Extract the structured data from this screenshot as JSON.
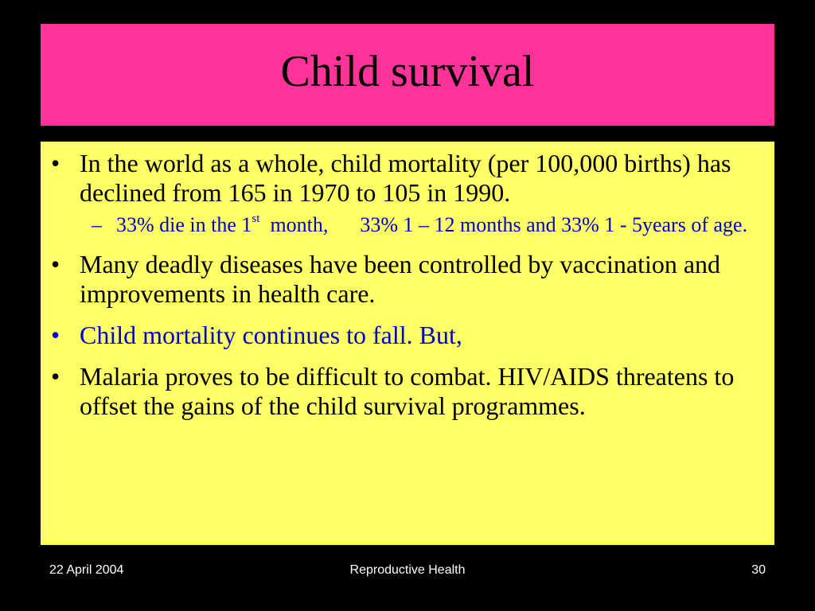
{
  "slide": {
    "title": "Child survival",
    "colors": {
      "background": "#000000",
      "title_box": "#ff3399",
      "body_box": "#ffff66",
      "accent_text": "#0000cc"
    },
    "bullets": [
      {
        "marker": "•",
        "text": "In the world as a whole, child mortality (per 100,000 births) has declined from 165 in 1970 to 105 in 1990.",
        "sub_bullets": [
          {
            "marker": "–",
            "part1": "33% die in the 1",
            "superscript": "st",
            "part2": "  month,",
            "part3": "33%  1 – 12 months and 33%  1 - 5years of age."
          }
        ]
      },
      {
        "marker": "•",
        "text": "Many deadly diseases have been controlled by vaccination and improvements in health care."
      },
      {
        "marker": "•",
        "text": "Child mortality continues to fall.  But,"
      },
      {
        "marker": "•",
        "text": "Malaria proves to be difficult to combat.  HIV/AIDS threatens to offset the gains of the child survival programmes."
      }
    ]
  },
  "footer": {
    "date": "22 April 2004",
    "title": "Reproductive Health",
    "page_number": "30"
  }
}
